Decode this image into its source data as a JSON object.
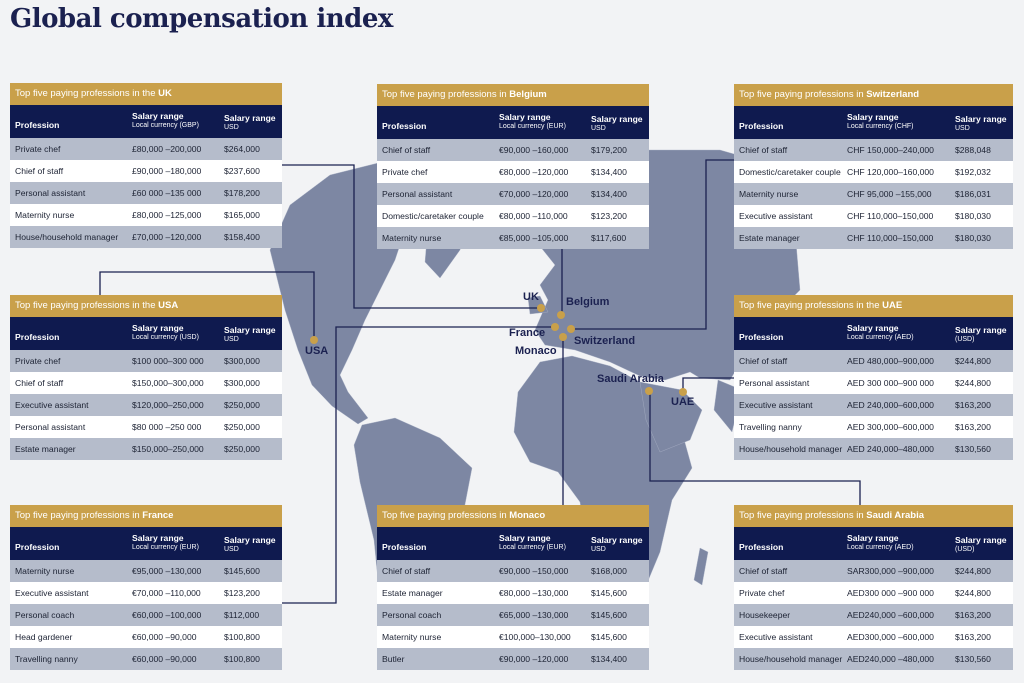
{
  "title": "Global compensation index",
  "colors": {
    "title": "#1b2150",
    "gold": "#c9a04a",
    "navy": "#0f1a4f",
    "row_gray": "#b5bccb",
    "land": "#7d87a3"
  },
  "map_labels": [
    "UK",
    "Belgium",
    "France",
    "Switzerland",
    "Monaco",
    "USA",
    "Saudi Arabia",
    "UAE"
  ],
  "tables": [
    {
      "prefix": "Top five paying professions in the ",
      "country": "UK",
      "col1": "Profession",
      "col2": "Salary range",
      "col2_sub": "Local currency (GBP)",
      "col3": "Salary range",
      "col3_sub": "USD",
      "rows": [
        [
          "Private chef",
          "£80,000 –200,000",
          "$264,000"
        ],
        [
          "Chief of staff",
          "£90,000 –180,000",
          "$237,600"
        ],
        [
          "Personal assistant",
          "£60 000 –135 000",
          "$178,200"
        ],
        [
          "Maternity nurse",
          "£80,000 –125,000",
          "$165,000"
        ],
        [
          "House/household manager",
          "£70,000 –120,000",
          "$158,400"
        ]
      ]
    },
    {
      "prefix": "Top five paying professions in ",
      "country": "Belgium",
      "col1": "Profession",
      "col2": "Salary range",
      "col2_sub": "Local currency (EUR)",
      "col3": "Salary range",
      "col3_sub": "USD",
      "rows": [
        [
          "Chief of staff",
          "€90,000 –160,000",
          "$179,200"
        ],
        [
          "Private chef",
          "€80,000 –120,000",
          "$134,400"
        ],
        [
          "Personal assistant",
          "€70,000 –120,000",
          "$134,400"
        ],
        [
          "Domestic/caretaker couple",
          "€80,000 –110,000",
          "$123,200"
        ],
        [
          "Maternity nurse",
          "€85,000 –105,000",
          "$117,600"
        ]
      ]
    },
    {
      "prefix": "Top five paying professions in ",
      "country": "Switzerland",
      "col1": "Profession",
      "col2": "Salary range",
      "col2_sub": "Local currency (CHF)",
      "col3": "Salary range",
      "col3_sub": "USD",
      "rows": [
        [
          "Chief of staff",
          "CHF 150,000–240,000",
          "$288,048"
        ],
        [
          "Domestic/caretaker couple",
          "CHF 120,000–160,000",
          "$192,032"
        ],
        [
          "Maternity nurse",
          "CHF 95,000  –155,000",
          "$186,031"
        ],
        [
          "Executive assistant",
          "CHF 110,000–150,000",
          "$180,030"
        ],
        [
          "Estate manager",
          "CHF 110,000–150,000",
          "$180,030"
        ]
      ]
    },
    {
      "prefix": "Top five paying professions in the ",
      "country": "USA",
      "col1": "Profession",
      "col2": "Salary range",
      "col2_sub": "Local currency (USD)",
      "col3": "Salary range",
      "col3_sub": "USD",
      "rows": [
        [
          "Private chef",
          "$100 000–300 000",
          "$300,000"
        ],
        [
          "Chief of staff",
          "$150,000–300,000",
          "$300,000"
        ],
        [
          "Executive assistant",
          "$120,000–250,000",
          "$250,000"
        ],
        [
          "Personal assistant",
          "$80 000  –250 000",
          "$250,000"
        ],
        [
          "Estate manager",
          "$150,000–250,000",
          "$250,000"
        ]
      ]
    },
    {
      "prefix": "Top five paying professions in the ",
      "country": "UAE",
      "col1": "Profession",
      "col2": "Salary range",
      "col2_sub": "Local currency (AED)",
      "col3": "Salary range",
      "col3_sub": "(USD)",
      "rows": [
        [
          "Chief of staff",
          "AED 480,000–900,000",
          "$244,800"
        ],
        [
          "Personal assistant",
          "AED 300 000–900 000",
          "$244,800"
        ],
        [
          "Executive assistant",
          "AED 240,000–600,000",
          "$163,200"
        ],
        [
          "Travelling nanny",
          "AED 300,000–600,000",
          "$163,200"
        ],
        [
          "House/household manager",
          "AED 240,000–480,000",
          "$130,560"
        ]
      ]
    },
    {
      "prefix": "Top five paying professions in ",
      "country": "France",
      "col1": "Profession",
      "col2": "Salary range",
      "col2_sub": "Local currency (EUR)",
      "col3": "Salary range",
      "col3_sub": "USD",
      "rows": [
        [
          "Maternity nurse",
          "€95,000  –130,000",
          "$145,600"
        ],
        [
          "Executive assistant",
          "€70,000  –110,000",
          "$123,200"
        ],
        [
          "Personal coach",
          "€60,000  –100,000",
          "$112,000"
        ],
        [
          "Head gardener",
          "€60,000  –90,000",
          "$100,800"
        ],
        [
          "Travelling nanny",
          "€60,000  –90,000",
          "$100,800"
        ]
      ]
    },
    {
      "prefix": "Top five paying professions in ",
      "country": "Monaco",
      "col1": "Profession",
      "col2": "Salary range",
      "col2_sub": "Local currency (EUR)",
      "col3": "Salary range",
      "col3_sub": "USD",
      "rows": [
        [
          "Chief of staff",
          "€90,000  –150,000",
          "$168,000"
        ],
        [
          "Estate manager",
          "€80,000  –130,000",
          "$145,600"
        ],
        [
          "Personal coach",
          "€65,000  –130,000",
          "$145,600"
        ],
        [
          "Maternity nurse",
          "€100,000–130,000",
          "$145,600"
        ],
        [
          "Butler",
          "€90,000  –120,000",
          "$134,400"
        ]
      ]
    },
    {
      "prefix": "Top five paying professions in ",
      "country": "Saudi Arabia",
      "col1": "Profession",
      "col2": "Salary range",
      "col2_sub": "Local currency (AED)",
      "col3": "Salary range",
      "col3_sub": "(USD)",
      "rows": [
        [
          "Chief of staff",
          "SAR300,000  –900,000",
          "$244,800"
        ],
        [
          "Private chef",
          "AED300 000 –900 000",
          "$244,800"
        ],
        [
          "Housekeeper",
          "AED240,000 –600,000",
          "$163,200"
        ],
        [
          "Executive assistant",
          "AED300,000 –600,000",
          "$163,200"
        ],
        [
          "House/household manager",
          "AED240,000 –480,000",
          "$130,560"
        ]
      ]
    }
  ]
}
